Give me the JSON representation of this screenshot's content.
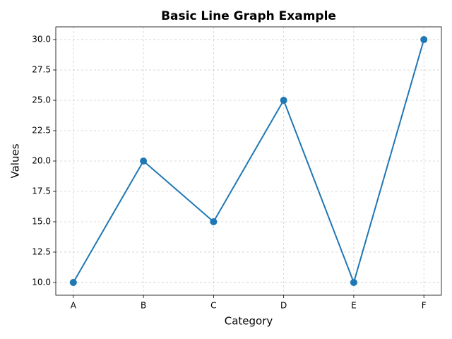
{
  "chart_data": {
    "type": "line",
    "title": "Basic Line Graph Example",
    "x_label": "Category",
    "y_label": "Values",
    "categories": [
      "A",
      "B",
      "C",
      "D",
      "E",
      "F"
    ],
    "values": [
      10,
      20,
      15,
      25,
      10,
      30
    ],
    "color": "#1f77b4",
    "ylim": [
      8.95,
      31.05
    ],
    "yticks": [
      {
        "value": 10,
        "label": "10.0"
      },
      12.5,
      {
        "value": 15,
        "label": "15.0"
      },
      17.5,
      {
        "value": 20,
        "label": "20.0"
      },
      22.5,
      {
        "value": 25,
        "label": "25.0"
      },
      27.5,
      {
        "value": 30,
        "label": "30.0"
      }
    ],
    "grid": true
  }
}
